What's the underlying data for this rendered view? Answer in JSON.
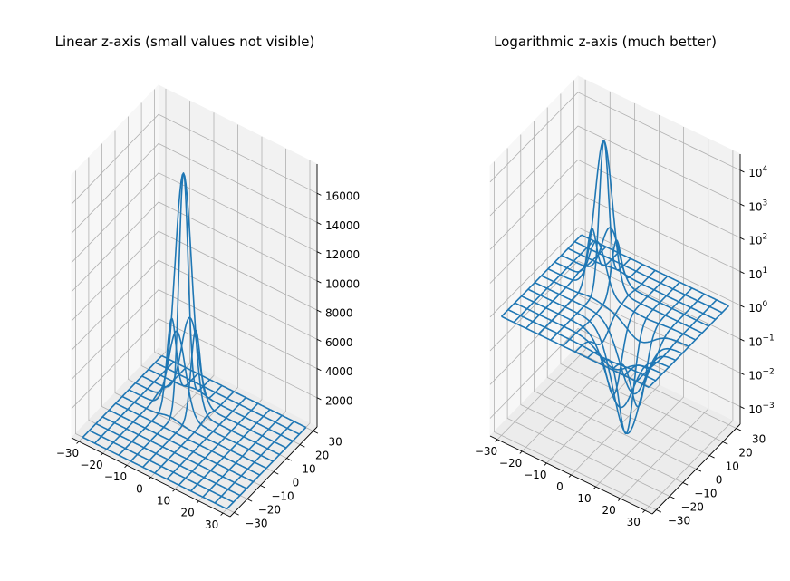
{
  "figure": {
    "panels": [
      {
        "title": "Linear z-axis (small values not visible)"
      },
      {
        "title": "Logarithmic z-axis (much better)"
      }
    ]
  },
  "chart_data": [
    {
      "type": "surface-wireframe",
      "title": "Linear z-axis (small values not visible)",
      "x_ticks": [
        "−30",
        "−20",
        "−10",
        "0",
        "10",
        "20",
        "30"
      ],
      "y_ticks": [
        "−30",
        "−20",
        "−10",
        "0",
        "10",
        "20",
        "30"
      ],
      "z_ticks": [
        "2000",
        "4000",
        "6000",
        "8000",
        "10000",
        "12000",
        "14000",
        "16000"
      ],
      "xlim": [
        -33,
        33
      ],
      "ylim": [
        -33,
        33
      ],
      "zlim": [
        0,
        18000
      ],
      "z_scale": "linear",
      "peak_z": 16000,
      "grid": true,
      "color": "#1f77b4"
    },
    {
      "type": "surface-wireframe",
      "title": "Logarithmic z-axis (much better)",
      "x_ticks": [
        "−30",
        "−20",
        "−10",
        "0",
        "10",
        "20",
        "30"
      ],
      "y_ticks": [
        "−30",
        "−20",
        "−10",
        "0",
        "10",
        "20",
        "30"
      ],
      "z_ticks": [
        {
          "base": "10",
          "exp": "−3"
        },
        {
          "base": "10",
          "exp": "−2"
        },
        {
          "base": "10",
          "exp": "−1"
        },
        {
          "base": "10",
          "exp": "0"
        },
        {
          "base": "10",
          "exp": "1"
        },
        {
          "base": "10",
          "exp": "2"
        },
        {
          "base": "10",
          "exp": "3"
        },
        {
          "base": "10",
          "exp": "4"
        }
      ],
      "xlim": [
        -33,
        33
      ],
      "ylim": [
        -33,
        33
      ],
      "zlim": [
        0.0003,
        30000
      ],
      "z_scale": "log",
      "grid": true,
      "color": "#1f77b4"
    }
  ]
}
